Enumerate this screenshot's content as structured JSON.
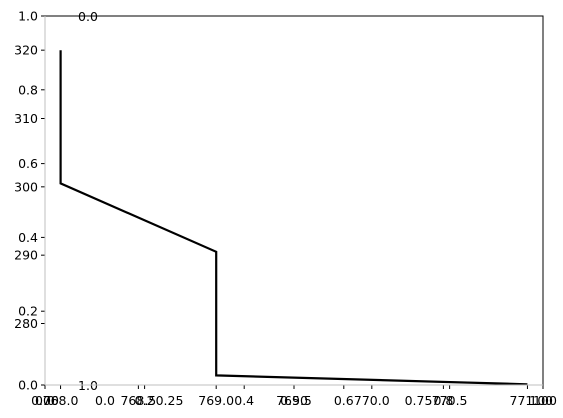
{
  "chart_data": {
    "type": "line",
    "title": "",
    "xlabel": "",
    "ylabel": "",
    "grid": false,
    "legend": "none",
    "colors": {
      "line": "#000000",
      "axes": "#000000",
      "background": "#ffffff"
    },
    "xlim": [
      767.9,
      771.1
    ],
    "ylim": [
      271.0,
      325.0
    ],
    "x": [
      768.0,
      768.0,
      769.0,
      769.0,
      771.0
    ],
    "y": [
      320.0,
      300.5,
      290.5,
      272.4,
      271.1
    ],
    "xticks": [
      "768.0",
      "768.5",
      "769.0",
      "769.5",
      "770.0",
      "770.5",
      "771.0"
    ],
    "yticks": [
      "280",
      "290",
      "300",
      "310",
      "320"
    ],
    "x_tick_values": [
      768.0,
      768.5,
      769.0,
      769.5,
      770.0,
      770.5,
      771.0
    ],
    "y_tick_values": [
      280,
      290,
      300,
      310,
      320
    ],
    "overlay_axes": {
      "bottom_ticks": [
        "0.0",
        "0.2",
        "0.4",
        "0.6",
        "0.8",
        "1.0"
      ],
      "left_ticks": [
        "0.0",
        "0.2",
        "0.4",
        "0.6",
        "0.8",
        "1.0"
      ],
      "alt_bottom_ticks": [
        "0.00",
        "0.25",
        "0.50",
        "0.75",
        "1.00"
      ],
      "twin_bottom_ticks": [
        "0.0",
        "0.2",
        "0.4",
        "0.6",
        "0.8",
        "1.0"
      ],
      "stray_labels": [
        "0.0",
        "1.0",
        "0.0"
      ]
    }
  }
}
